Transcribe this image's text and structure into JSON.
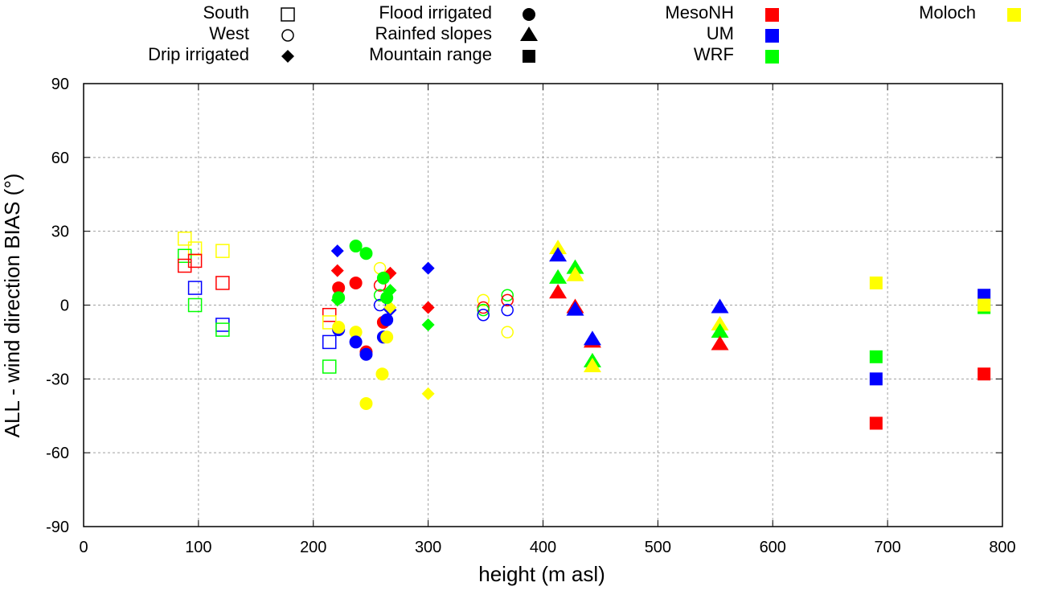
{
  "chart_data": {
    "type": "scatter",
    "title": "",
    "xlabel": "height (m asl)",
    "ylabel": "ALL - wind direction BIAS (°)",
    "xlim": [
      0,
      800
    ],
    "ylim": [
      -90,
      90
    ],
    "xticks": [
      0,
      100,
      200,
      300,
      400,
      500,
      600,
      700,
      800
    ],
    "yticks": [
      -90,
      -60,
      -30,
      0,
      30,
      60,
      90
    ],
    "grid": true,
    "legend_placement": "top",
    "legend_shapes": [
      {
        "label": "South",
        "marker": "open-square"
      },
      {
        "label": "West",
        "marker": "open-circle"
      },
      {
        "label": "Drip irrigated",
        "marker": "diamond"
      },
      {
        "label": "Flood irrigated",
        "marker": "circle"
      },
      {
        "label": "Rainfed slopes",
        "marker": "triangle"
      },
      {
        "label": "Mountain range",
        "marker": "square"
      }
    ],
    "legend_models": [
      {
        "label": "MesoNH",
        "color": "#ff0000"
      },
      {
        "label": "UM",
        "color": "#0000ff"
      },
      {
        "label": "WRF",
        "color": "#00ff00"
      },
      {
        "label": "Moloch",
        "color": "#ffff00"
      }
    ],
    "series": [
      {
        "name": "South",
        "marker": "open-square",
        "points": [
          {
            "model": "Moloch",
            "x": 88,
            "y": 27
          },
          {
            "model": "Moloch",
            "x": 97,
            "y": 23
          },
          {
            "model": "Moloch",
            "x": 121,
            "y": 22
          },
          {
            "model": "WRF",
            "x": 88,
            "y": 20
          },
          {
            "model": "MesoNH",
            "x": 97,
            "y": 18
          },
          {
            "model": "MesoNH",
            "x": 88,
            "y": 16
          },
          {
            "model": "MesoNH",
            "x": 121,
            "y": 9
          },
          {
            "model": "UM",
            "x": 97,
            "y": 7
          },
          {
            "model": "WRF",
            "x": 97,
            "y": 0
          },
          {
            "model": "UM",
            "x": 121,
            "y": -8
          },
          {
            "model": "WRF",
            "x": 121,
            "y": -10
          },
          {
            "model": "MesoNH",
            "x": 214,
            "y": -4
          },
          {
            "model": "Moloch",
            "x": 214,
            "y": -7
          },
          {
            "model": "UM",
            "x": 214,
            "y": -15
          },
          {
            "model": "WRF",
            "x": 214,
            "y": -25
          }
        ]
      },
      {
        "name": "West",
        "marker": "open-circle",
        "points": [
          {
            "model": "Moloch",
            "x": 258,
            "y": 15
          },
          {
            "model": "MesoNH",
            "x": 258,
            "y": 8
          },
          {
            "model": "WRF",
            "x": 258,
            "y": 4
          },
          {
            "model": "UM",
            "x": 258,
            "y": 0
          },
          {
            "model": "Moloch",
            "x": 348,
            "y": 2
          },
          {
            "model": "MesoNH",
            "x": 348,
            "y": -1
          },
          {
            "model": "WRF",
            "x": 348,
            "y": -2
          },
          {
            "model": "UM",
            "x": 348,
            "y": -4
          },
          {
            "model": "WRF",
            "x": 369,
            "y": 4
          },
          {
            "model": "MesoNH",
            "x": 369,
            "y": 2
          },
          {
            "model": "UM",
            "x": 369,
            "y": -2
          },
          {
            "model": "Moloch",
            "x": 369,
            "y": -11
          }
        ]
      },
      {
        "name": "Drip irrigated",
        "marker": "diamond",
        "points": [
          {
            "model": "UM",
            "x": 221,
            "y": 22
          },
          {
            "model": "MesoNH",
            "x": 221,
            "y": 14
          },
          {
            "model": "WRF",
            "x": 221,
            "y": 2
          },
          {
            "model": "MesoNH",
            "x": 267,
            "y": 13
          },
          {
            "model": "WRF",
            "x": 267,
            "y": 6
          },
          {
            "model": "UM",
            "x": 267,
            "y": -2
          },
          {
            "model": "Moloch",
            "x": 267,
            "y": -1
          },
          {
            "model": "UM",
            "x": 300,
            "y": 15
          },
          {
            "model": "MesoNH",
            "x": 300,
            "y": -1
          },
          {
            "model": "WRF",
            "x": 300,
            "y": -8
          },
          {
            "model": "Moloch",
            "x": 300,
            "y": -36
          }
        ]
      },
      {
        "name": "Flood irrigated",
        "marker": "circle",
        "points": [
          {
            "model": "WRF",
            "x": 237,
            "y": 24
          },
          {
            "model": "WRF",
            "x": 246,
            "y": 21
          },
          {
            "model": "MesoNH",
            "x": 237,
            "y": 9
          },
          {
            "model": "MesoNH",
            "x": 222,
            "y": 7
          },
          {
            "model": "WRF",
            "x": 222,
            "y": 3
          },
          {
            "model": "UM",
            "x": 222,
            "y": -10
          },
          {
            "model": "Moloch",
            "x": 222,
            "y": -9
          },
          {
            "model": "Moloch",
            "x": 237,
            "y": -11
          },
          {
            "model": "UM",
            "x": 237,
            "y": -15
          },
          {
            "model": "MesoNH",
            "x": 246,
            "y": -19
          },
          {
            "model": "UM",
            "x": 246,
            "y": -20
          },
          {
            "model": "Moloch",
            "x": 246,
            "y": -40
          },
          {
            "model": "WRF",
            "x": 261,
            "y": 11
          },
          {
            "model": "WRF",
            "x": 264,
            "y": 3
          },
          {
            "model": "MesoNH",
            "x": 261,
            "y": -7
          },
          {
            "model": "UM",
            "x": 264,
            "y": -6
          },
          {
            "model": "UM",
            "x": 261,
            "y": -13
          },
          {
            "model": "Moloch",
            "x": 264,
            "y": -13
          },
          {
            "model": "Moloch",
            "x": 260,
            "y": -28
          }
        ]
      },
      {
        "name": "Rainfed slopes",
        "marker": "triangle",
        "points": [
          {
            "model": "Moloch",
            "x": 413,
            "y": 23
          },
          {
            "model": "UM",
            "x": 413,
            "y": 20
          },
          {
            "model": "WRF",
            "x": 413,
            "y": 11
          },
          {
            "model": "MesoNH",
            "x": 413,
            "y": 5
          },
          {
            "model": "WRF",
            "x": 428,
            "y": 15
          },
          {
            "model": "Moloch",
            "x": 428,
            "y": 12
          },
          {
            "model": "MesoNH",
            "x": 428,
            "y": -1
          },
          {
            "model": "UM",
            "x": 428,
            "y": -2
          },
          {
            "model": "MesoNH",
            "x": 443,
            "y": -15
          },
          {
            "model": "UM",
            "x": 443,
            "y": -14
          },
          {
            "model": "WRF",
            "x": 443,
            "y": -23
          },
          {
            "model": "Moloch",
            "x": 443,
            "y": -25
          },
          {
            "model": "UM",
            "x": 554,
            "y": -1
          },
          {
            "model": "Moloch",
            "x": 554,
            "y": -8
          },
          {
            "model": "WRF",
            "x": 554,
            "y": -11
          },
          {
            "model": "MesoNH",
            "x": 554,
            "y": -16
          }
        ]
      },
      {
        "name": "Mountain range",
        "marker": "square",
        "points": [
          {
            "model": "Moloch",
            "x": 690,
            "y": 9
          },
          {
            "model": "WRF",
            "x": 690,
            "y": -21
          },
          {
            "model": "UM",
            "x": 690,
            "y": -30
          },
          {
            "model": "MesoNH",
            "x": 690,
            "y": -48
          },
          {
            "model": "UM",
            "x": 784,
            "y": 4
          },
          {
            "model": "WRF",
            "x": 784,
            "y": -1
          },
          {
            "model": "Moloch",
            "x": 784,
            "y": 0
          },
          {
            "model": "MesoNH",
            "x": 784,
            "y": -28
          }
        ]
      }
    ]
  }
}
